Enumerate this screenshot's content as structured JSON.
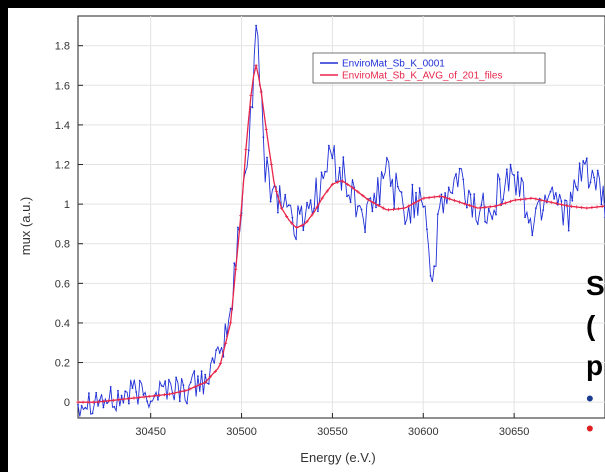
{
  "chart_data": {
    "type": "line",
    "title": "",
    "xlabel": "Energy (e.V.)",
    "ylabel": "mux (a.u.)",
    "xlim": [
      30410,
      30700
    ],
    "ylim": [
      -0.08,
      1.95
    ],
    "xticks": [
      30450,
      30500,
      30550,
      30600,
      30650
    ],
    "yticks": [
      0,
      0.2,
      0.4,
      0.6,
      0.8,
      1,
      1.2,
      1.4,
      1.6,
      1.8
    ],
    "grid": true,
    "legend_position": "top-right",
    "series": [
      {
        "name": "EnviroMat_Sb_K_0001",
        "color": "#1f2fd6",
        "marker": "dot",
        "x": [
          30410,
          30420,
          30430,
          30440,
          30450,
          30460,
          30470,
          30480,
          30488,
          30494,
          30500,
          30503,
          30506,
          30508,
          30510,
          30513,
          30516,
          30520,
          30525,
          30530,
          30535,
          30540,
          30550,
          30560,
          30570,
          30580,
          30590,
          30600,
          30605,
          30610,
          30620,
          30630,
          30640,
          30650,
          30660,
          30670,
          30680,
          30690,
          30700
        ],
        "y": [
          0.0,
          0.02,
          0.0,
          0.05,
          0.04,
          0.08,
          0.06,
          0.12,
          0.22,
          0.45,
          0.98,
          1.25,
          1.55,
          1.93,
          1.62,
          1.2,
          1.12,
          1.05,
          1.0,
          0.88,
          0.98,
          1.02,
          1.25,
          1.05,
          0.92,
          1.18,
          0.95,
          1.08,
          0.6,
          1.0,
          1.12,
          0.95,
          1.05,
          1.15,
          0.9,
          1.1,
          0.96,
          1.2,
          0.98
        ],
        "noise": 0.11
      },
      {
        "name": "EnviroMat_Sb_K_AVG_of_201_files",
        "color": "#e8264a",
        "marker": "plus",
        "x": [
          30410,
          30420,
          30430,
          30440,
          30450,
          30460,
          30470,
          30480,
          30488,
          30494,
          30500,
          30503,
          30506,
          30508,
          30510,
          30514,
          30518,
          30522,
          30526,
          30530,
          30535,
          30540,
          30545,
          30550,
          30555,
          30560,
          30570,
          30580,
          30590,
          30600,
          30610,
          30620,
          30630,
          30640,
          30650,
          30660,
          30670,
          30680,
          30690,
          30700
        ],
        "y": [
          0.0,
          0.0,
          0.01,
          0.02,
          0.03,
          0.04,
          0.06,
          0.1,
          0.18,
          0.4,
          0.98,
          1.35,
          1.62,
          1.7,
          1.62,
          1.35,
          1.1,
          0.98,
          0.92,
          0.88,
          0.9,
          0.96,
          1.04,
          1.1,
          1.12,
          1.09,
          1.02,
          0.97,
          0.98,
          1.03,
          1.04,
          1.01,
          0.98,
          0.99,
          1.02,
          1.03,
          1.01,
          0.99,
          0.98,
          0.99
        ],
        "noise": 0.0
      }
    ]
  },
  "overlay": {
    "lines": [
      "S",
      "(",
      "p"
    ]
  }
}
